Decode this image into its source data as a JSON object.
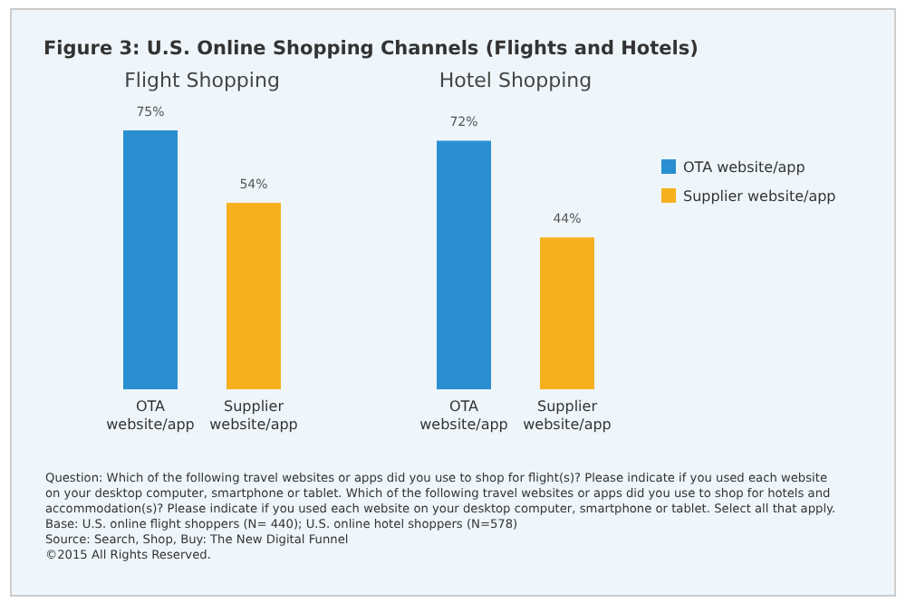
{
  "chart_data": [
    {
      "type": "bar",
      "title": "Flight Shopping",
      "categories": [
        "OTA website/app",
        "Supplier website/app"
      ],
      "series": [
        {
          "color": "#2a8fd0",
          "values": [
            75,
            null
          ],
          "value_labels": [
            "75%",
            null
          ]
        },
        {
          "color": "#f6b01e",
          "values": [
            null,
            54
          ],
          "value_labels": [
            null,
            "54%"
          ]
        }
      ],
      "annotations": [
        "Figure 3: U.S. Online Shopping Channels (Flights and Hotels)",
        "Question: Which of the following travel websites or apps did you use to shop for flight(s)? Please indicate if you used each website on your desktop computer, smartphone or tablet. Which of the following travel websites or apps did you use to shop for hotels and accommodation(s)? Please indicate if you used each website on your desktop computer, smartphone or tablet. Select all that apply.",
        "Base: U.S. online flight shoppers (N= 440); U.S. online hotel shoppers (N=578)",
        "Source: Search, Shop, Buy: The New Digital Funnel",
        "©2015 All Rights Reserved."
      ]
    },
    {
      "type": "bar",
      "title": "Hotel Shopping",
      "categories": [
        "OTA website/app",
        "Supplier website/app"
      ],
      "series": [
        {
          "name": "OTA website/app",
          "color": "#2a8fd0",
          "values": [
            72,
            null
          ],
          "value_labels": [
            "72%",
            null
          ]
        },
        {
          "name": "Supplier website/app",
          "color": "#f6b01e",
          "values": [
            null,
            44
          ],
          "value_labels": [
            null,
            "44%"
          ]
        }
      ],
      "legend": "right"
    }
  ]
}
